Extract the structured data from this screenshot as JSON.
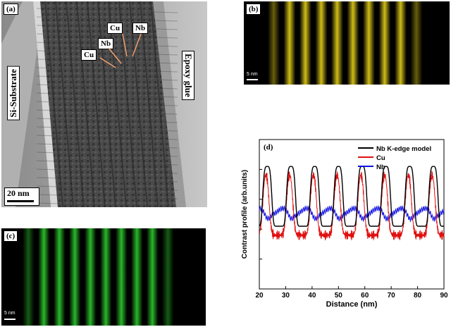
{
  "panels": {
    "a": {
      "label": "(a)",
      "substrate_label": "Si-Substrate",
      "glue_label": "Epoxy glue",
      "annotations": [
        "Cu",
        "Nb",
        "Cu",
        "Nb"
      ],
      "scalebar": "20 nm"
    },
    "b": {
      "label": "(b)",
      "scalebar": "5 nm",
      "color": "#e6d21a"
    },
    "c": {
      "label": "(c)",
      "scalebar": "5 nm",
      "color": "#2ecc2e"
    },
    "d": {
      "label": "(d)"
    }
  },
  "chart_data": {
    "type": "line",
    "xlabel": "Distance (nm)",
    "ylabel": "Contrast profile (arb.units)",
    "xlim": [
      20,
      90
    ],
    "xticks": [
      20,
      30,
      40,
      50,
      60,
      70,
      80,
      90
    ],
    "ylim": [
      0,
      1
    ],
    "legend_position": "top-right",
    "series": [
      {
        "name": "Nb K-edge model",
        "color": "#000000",
        "peaks": [
          23,
          32,
          41,
          50,
          59,
          68,
          77,
          86
        ],
        "high": 0.82,
        "low": 0.42
      },
      {
        "name": "Cu",
        "color": "#e01010",
        "peaks": [
          22.5,
          31.5,
          40.5,
          49.5,
          58.5,
          67.5,
          76.5,
          85.5
        ],
        "high": 0.76,
        "low": 0.36
      },
      {
        "name": "Nb",
        "color": "#1010e0",
        "mean": 0.52
      }
    ]
  }
}
